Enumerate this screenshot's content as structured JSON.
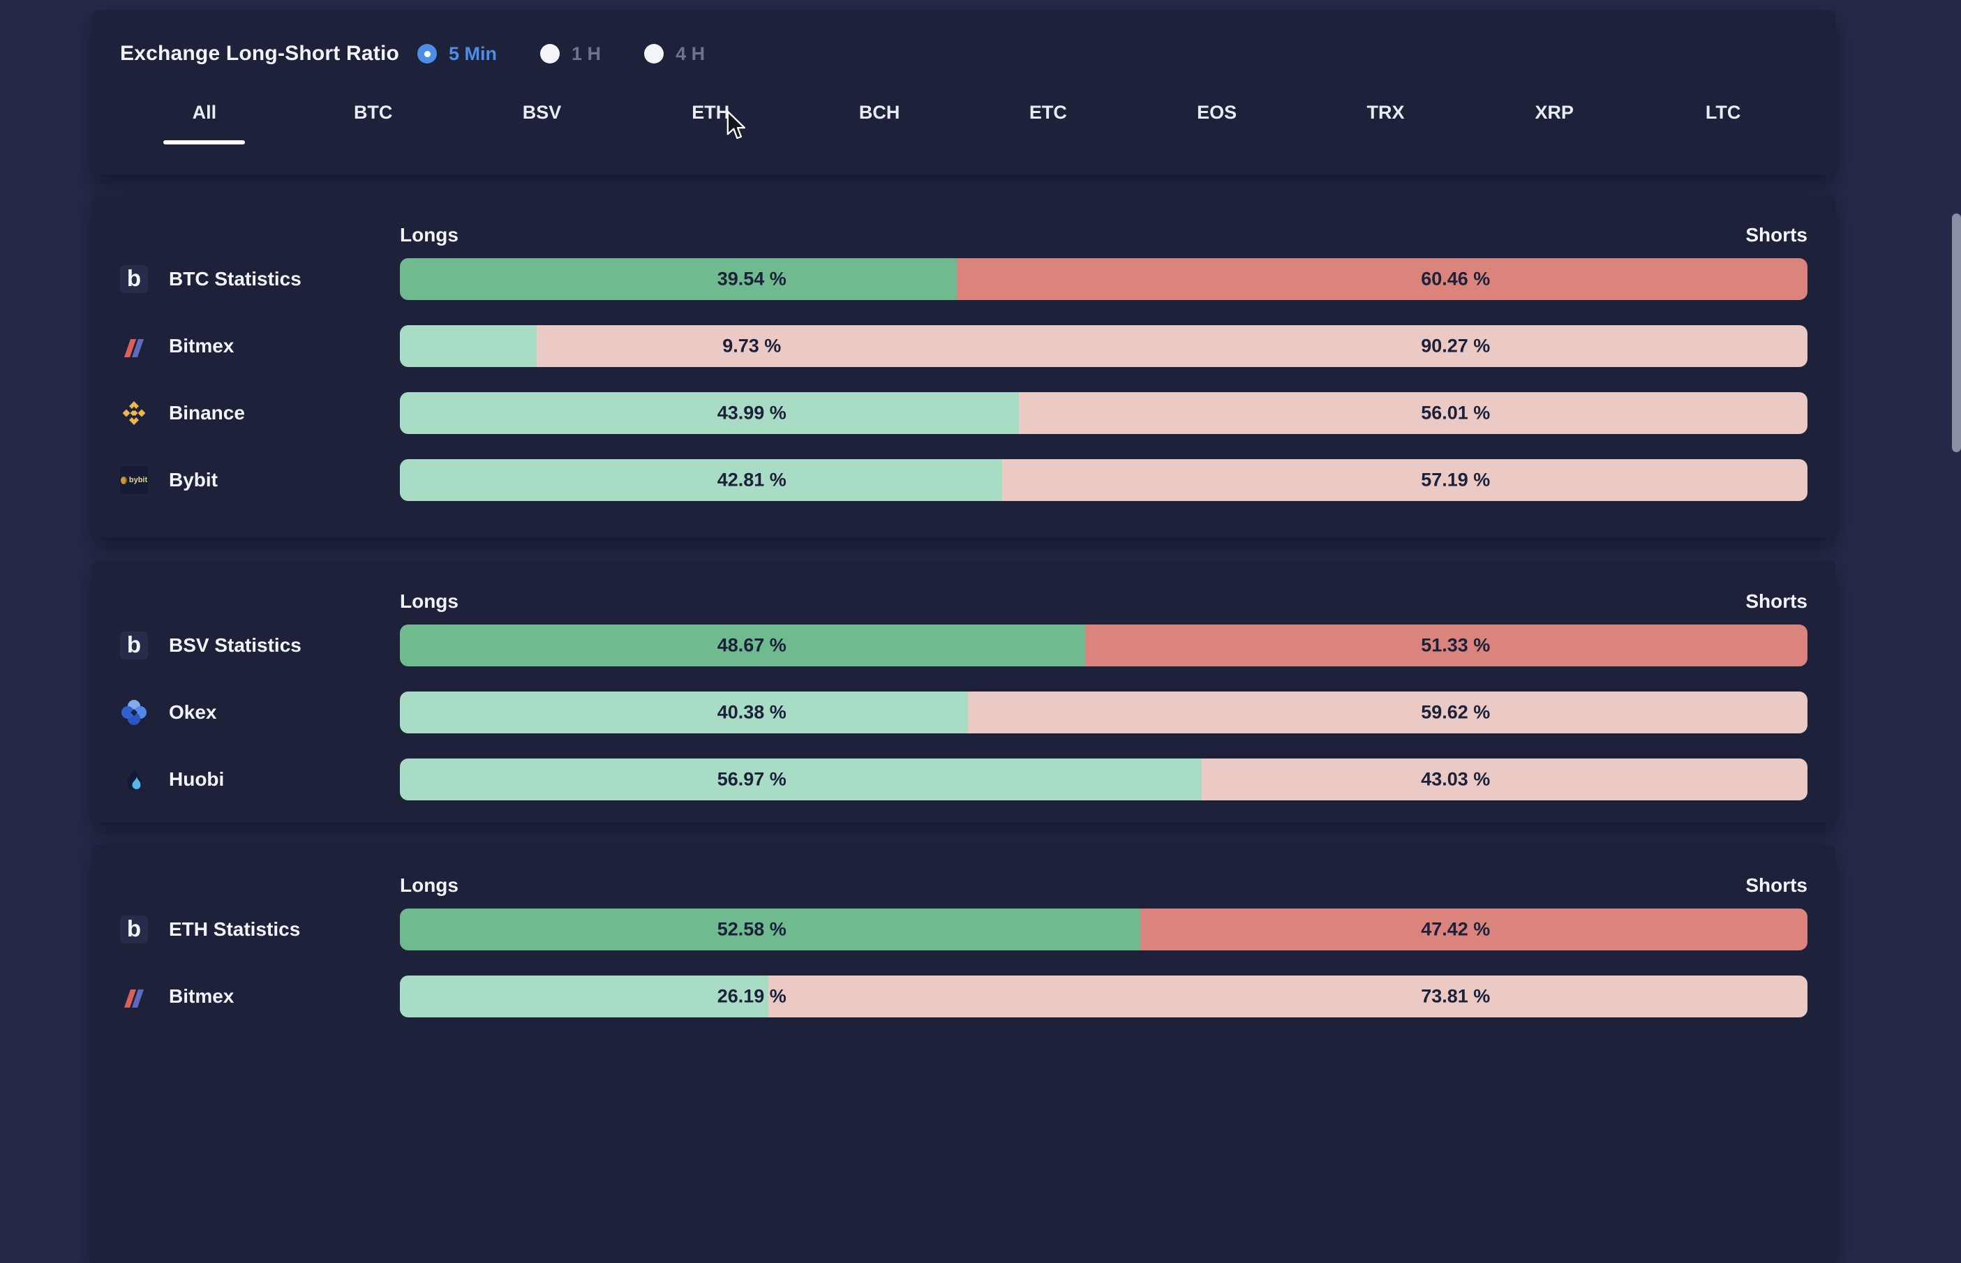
{
  "header": {
    "title": "Exchange Long-Short Ratio",
    "intervals": [
      {
        "label": "5 Min",
        "selected": true
      },
      {
        "label": "1 H",
        "selected": false
      },
      {
        "label": "4 H",
        "selected": false
      }
    ],
    "tabs": [
      {
        "label": "All",
        "active": true
      },
      {
        "label": "BTC",
        "active": false
      },
      {
        "label": "BSV",
        "active": false
      },
      {
        "label": "ETH",
        "active": false
      },
      {
        "label": "BCH",
        "active": false
      },
      {
        "label": "ETC",
        "active": false
      },
      {
        "label": "EOS",
        "active": false
      },
      {
        "label": "TRX",
        "active": false
      },
      {
        "label": "XRP",
        "active": false
      },
      {
        "label": "LTC",
        "active": false
      }
    ]
  },
  "columns": {
    "longs": "Longs",
    "shorts": "Shorts"
  },
  "percent_suffix": " %",
  "cards": [
    {
      "rows": [
        {
          "label": "BTC Statistics",
          "icon": "bybt",
          "longs": 39.54,
          "shorts": 60.46,
          "emphasis": true
        },
        {
          "label": "Bitmex",
          "icon": "bitmex",
          "longs": 9.73,
          "shorts": 90.27,
          "emphasis": false
        },
        {
          "label": "Binance",
          "icon": "binance",
          "longs": 43.99,
          "shorts": 56.01,
          "emphasis": false
        },
        {
          "label": "Bybit",
          "icon": "bybit",
          "longs": 42.81,
          "shorts": 57.19,
          "emphasis": false
        }
      ]
    },
    {
      "rows": [
        {
          "label": "BSV Statistics",
          "icon": "bybt",
          "longs": 48.67,
          "shorts": 51.33,
          "emphasis": true
        },
        {
          "label": "Okex",
          "icon": "okex",
          "longs": 40.38,
          "shorts": 59.62,
          "emphasis": false
        },
        {
          "label": "Huobi",
          "icon": "huobi",
          "longs": 56.97,
          "shorts": 43.03,
          "emphasis": false
        }
      ]
    },
    {
      "rows": [
        {
          "label": "ETH Statistics",
          "icon": "bybt",
          "longs": 52.58,
          "shorts": 47.42,
          "emphasis": true
        },
        {
          "label": "Bitmex",
          "icon": "bitmex",
          "longs": 26.19,
          "shorts": 73.81,
          "emphasis": false
        }
      ]
    }
  ],
  "colors": {
    "page_bg": "#242A48",
    "card_bg": "#1D223A",
    "stats_long_green": "#6FBA8E",
    "stats_short_red": "#DB837D",
    "exchange_long_green": "#A9DCC4",
    "exchange_short_pink": "#EBC9C5",
    "bar_text": "#1B2138",
    "accent_blue": "#4D8FE8",
    "inactive_gray": "#6E7489",
    "binance_gold": "#ECB64D",
    "scrollbar_thumb": "#8A90A3"
  }
}
